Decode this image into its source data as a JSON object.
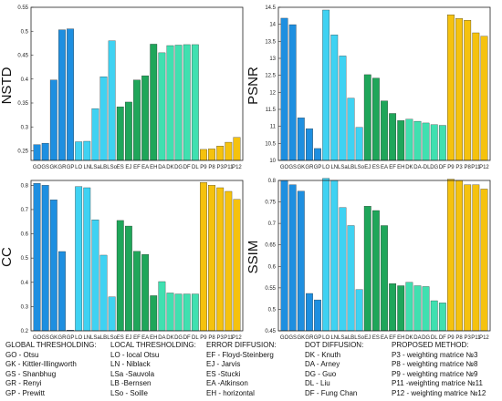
{
  "colors": {
    "global": "#1e8fe0",
    "local": "#3fd2f2",
    "error": "#1fa65a",
    "dot": "#40e0b0",
    "proposed": "#f5c20e"
  },
  "chart_data": [
    {
      "type": "bar",
      "ylabel": "NSTD",
      "ylim": [
        0.23,
        0.55
      ],
      "yticks": [
        0.25,
        0.3,
        0.35,
        0.4,
        0.45,
        0.5,
        0.55
      ],
      "categories": [
        "GO",
        "GS",
        "GK",
        "GR",
        "GP",
        "LO",
        "LN",
        "LSa",
        "LB",
        "LSo",
        "ES",
        "EJ",
        "EF",
        "EA",
        "EH",
        "DA",
        "DK",
        "DG",
        "DF",
        "DL",
        "P9",
        "P8",
        "P3",
        "P11",
        "P12"
      ],
      "tick_labels": [
        "GO",
        "GS",
        "GK",
        "GR",
        "GP",
        "LO",
        "LN",
        "LSa",
        "LB",
        "LSo",
        "ES",
        "EJ",
        "EF",
        "EA",
        "EH",
        "DA",
        "DK",
        "DG",
        "DF",
        "DL",
        "P9",
        "P8",
        "P3",
        "P11",
        "P12"
      ],
      "groups": [
        "global",
        "global",
        "global",
        "global",
        "global",
        "local",
        "local",
        "local",
        "local",
        "local",
        "error",
        "error",
        "error",
        "error",
        "error",
        "dot",
        "dot",
        "dot",
        "dot",
        "dot",
        "proposed",
        "proposed",
        "proposed",
        "proposed",
        "proposed"
      ],
      "values": [
        0.263,
        0.266,
        0.398,
        0.503,
        0.505,
        0.269,
        0.27,
        0.338,
        0.405,
        0.48,
        0.342,
        0.352,
        0.398,
        0.407,
        0.473,
        0.455,
        0.47,
        0.471,
        0.472,
        0.472,
        0.253,
        0.254,
        0.26,
        0.268,
        0.278
      ],
      "grid": false
    },
    {
      "type": "bar",
      "ylabel": "PSNR",
      "ylim": [
        10,
        14.5
      ],
      "yticks": [
        10,
        10.5,
        11,
        11.5,
        12,
        12.5,
        13,
        13.5,
        14,
        14.5
      ],
      "categories": [
        "GO",
        "GS",
        "GK",
        "GR",
        "GP",
        "LO",
        "LN",
        "LSa",
        "LB",
        "LSo",
        "EJ",
        "ES",
        "EA",
        "EF",
        "EH",
        "DK",
        "DA",
        "DL",
        "DG",
        "DF",
        "P9",
        "P3",
        "P8",
        "P11",
        "P12"
      ],
      "tick_labels": [
        "GO",
        "GS",
        "GK",
        "GR",
        "GP",
        "LO",
        "LN",
        "LSa",
        "LB",
        "LSo",
        "EJ",
        "ES",
        "EA",
        "EF",
        "EH",
        "DK",
        "DA",
        "-DL",
        "DG",
        "DF",
        "P9",
        "P3",
        "P8",
        "P11",
        "P12"
      ],
      "groups": [
        "global",
        "global",
        "global",
        "global",
        "global",
        "local",
        "local",
        "local",
        "local",
        "local",
        "error",
        "error",
        "error",
        "error",
        "error",
        "dot",
        "dot",
        "dot",
        "dot",
        "dot",
        "proposed",
        "proposed",
        "proposed",
        "proposed",
        "proposed"
      ],
      "values": [
        14.18,
        13.99,
        11.25,
        10.93,
        10.35,
        14.42,
        13.69,
        13.07,
        11.83,
        10.97,
        12.52,
        12.42,
        11.75,
        11.38,
        11.17,
        11.21,
        11.15,
        11.1,
        11.05,
        11.03,
        14.28,
        14.17,
        14.12,
        13.75,
        13.65
      ],
      "grid": false
    },
    {
      "type": "bar",
      "ylabel": "CC",
      "ylim": [
        0.2,
        0.82
      ],
      "yticks": [
        0.2,
        0.3,
        0.4,
        0.5,
        0.6,
        0.7,
        0.8
      ],
      "categories": [
        "GO",
        "GS",
        "GK",
        "GR",
        "GP",
        "LO",
        "LN",
        "LSa",
        "LB",
        "LSo",
        "ES",
        "EJ",
        "EF",
        "EA",
        "EH",
        "DA",
        "DK",
        "DG",
        "DF",
        "DL",
        "P9",
        "P8",
        "P3",
        "P11",
        "P12"
      ],
      "tick_labels": [
        "GO",
        "GS",
        "GK",
        "GR",
        "GP",
        "LO",
        "LN",
        "LSa",
        "LB",
        "LSo",
        "ES",
        "EJ",
        "EF",
        "EA",
        "EH",
        "DA",
        "DK",
        "DG",
        "DF",
        "DL",
        "P9",
        "P8",
        "P3",
        "P11",
        "P12"
      ],
      "groups": [
        "global",
        "global",
        "global",
        "global",
        "global",
        "local",
        "local",
        "local",
        "local",
        "local",
        "error",
        "error",
        "error",
        "error",
        "error",
        "dot",
        "dot",
        "dot",
        "dot",
        "dot",
        "proposed",
        "proposed",
        "proposed",
        "proposed",
        "proposed"
      ],
      "values": [
        0.808,
        0.8,
        0.74,
        0.527,
        0.203,
        0.795,
        0.79,
        0.658,
        0.512,
        0.34,
        0.655,
        0.632,
        0.528,
        0.515,
        0.345,
        0.403,
        0.356,
        0.352,
        0.352,
        0.352,
        0.812,
        0.8,
        0.79,
        0.775,
        0.742
      ],
      "grid": false
    },
    {
      "type": "bar",
      "ylabel": "SSIM",
      "ylim": [
        0.45,
        0.8
      ],
      "yticks": [
        0.45,
        0.5,
        0.55,
        0.6,
        0.65,
        0.7,
        0.75,
        0.8
      ],
      "categories": [
        "GO",
        "GS",
        "GK",
        "GR",
        "GP",
        "LO",
        "LN",
        "LSa",
        "LB",
        "LSo",
        "EJ",
        "ES",
        "EA",
        "EF",
        "EH",
        "DK",
        "DA",
        "DG",
        "DL",
        "DF",
        "P9",
        "P8",
        "P3",
        "P11",
        "P12"
      ],
      "tick_labels": [
        "GO",
        "GS",
        "GK",
        "GR",
        "GP",
        "LO",
        "LN",
        "LSa",
        "LB",
        "LSo",
        "EJ",
        "ES",
        "EA",
        "EF",
        "EH",
        "DK",
        "DA",
        "DG",
        "DL",
        "DF",
        "P9",
        "P8",
        "P3",
        "P11",
        "P12"
      ],
      "groups": [
        "global",
        "global",
        "global",
        "global",
        "global",
        "local",
        "local",
        "local",
        "local",
        "local",
        "error",
        "error",
        "error",
        "error",
        "error",
        "dot",
        "dot",
        "dot",
        "dot",
        "dot",
        "proposed",
        "proposed",
        "proposed",
        "proposed",
        "proposed"
      ],
      "values": [
        0.8,
        0.79,
        0.775,
        0.537,
        0.522,
        0.805,
        0.8,
        0.737,
        0.695,
        0.546,
        0.74,
        0.73,
        0.695,
        0.56,
        0.555,
        0.563,
        0.555,
        0.553,
        0.52,
        0.515,
        0.803,
        0.8,
        0.79,
        0.79,
        0.78
      ],
      "grid": false
    }
  ],
  "legend": {
    "global": {
      "title": "GLOBAL THRESHOLDING:",
      "items": [
        "GO - Otsu",
        "GK - Kittler-Illingworth",
        "GS - Shanbhug",
        "GR - Renyi",
        "GP - Prewitt"
      ]
    },
    "local": {
      "title": "LOCAL THRESHOLDING:",
      "items": [
        "LO - local Otsu",
        "LN - Niblack",
        "LSa -Sauvola",
        "LB -Bernsen",
        "LSo - Soille"
      ]
    },
    "error": {
      "title": "ERROR DIFFUSION:",
      "items": [
        "EF - Floyd-Steinberg",
        "EJ - Jarvis",
        "ES -Stucki",
        "EA -Atkinson",
        "EH - horizontal"
      ]
    },
    "dot": {
      "title": "DOT DIFFUSION:",
      "items": [
        "DK - Knuth",
        "DA - Arney",
        "DG - Guo",
        "DL - Liu",
        "DF - Fung Chan"
      ]
    },
    "proposed": {
      "title": "PROPOSED METHOD:",
      "items": [
        "P3 - weighting matrice №3",
        "P8 - weighting matrice №8",
        "P9 - weighting matrice №9",
        "P11 -weighting matrice №11",
        "P12 - weighting matrice №12"
      ]
    }
  }
}
